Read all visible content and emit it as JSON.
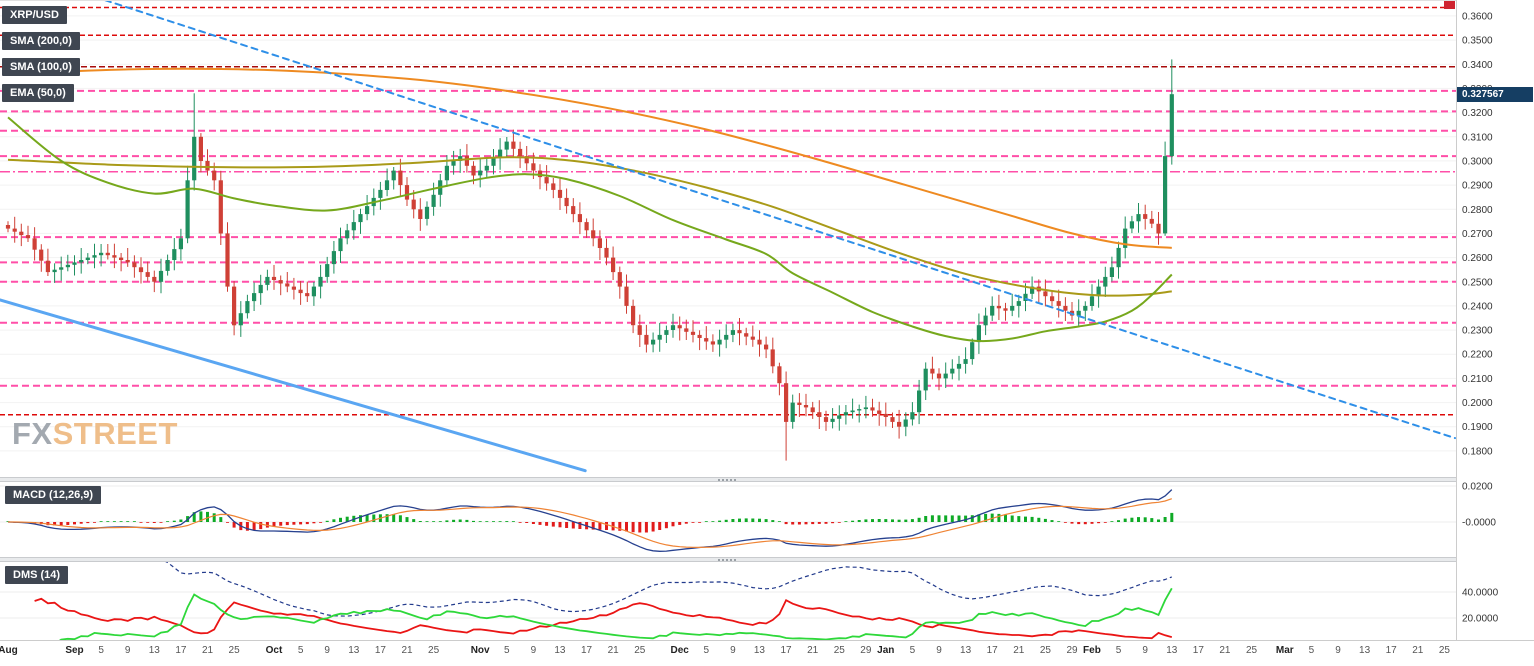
{
  "header": {
    "symbol": "XRP/USD"
  },
  "legend": {
    "sma200": "SMA (200,0)",
    "sma100": "SMA (100,0)",
    "ema50": "EMA (50,0)",
    "macd": "MACD (12,26,9)",
    "dms": "DMS (14)"
  },
  "price_badge": "0.327567",
  "watermark": {
    "fx": "FX",
    "street": "STREET"
  },
  "colors": {
    "up": "#1f8f5f",
    "down": "#cf4036",
    "badge_bg": "#3f4651",
    "price_badge_bg": "#153e63",
    "macd_line": "#27418f",
    "macd_signal": "#ef8435",
    "hist_pos": "#0faa26",
    "hist_neg": "#e11b1b",
    "di_plus": "#2ed83a",
    "di_minus": "#ea1515",
    "adx": "#223a8c"
  },
  "chart_data": {
    "type": "candlestick",
    "symbol": "XRP/USD",
    "last_price": 0.327567,
    "first_open": 0.2735,
    "closes": [
      0.272,
      0.2707,
      0.2693,
      0.268,
      0.2633,
      0.2587,
      0.254,
      0.255,
      0.256,
      0.257,
      0.258,
      0.259,
      0.26,
      0.261,
      0.262,
      0.261,
      0.26,
      0.259,
      0.258,
      0.256,
      0.254,
      0.252,
      0.25,
      0.2545,
      0.259,
      0.2635,
      0.268,
      0.292,
      0.31,
      0.3,
      0.296,
      0.292,
      0.27,
      0.248,
      0.232,
      0.237,
      0.242,
      0.2453,
      0.2487,
      0.252,
      0.2507,
      0.2493,
      0.248,
      0.2467,
      0.2453,
      0.244,
      0.248,
      0.252,
      0.2573,
      0.2627,
      0.268,
      0.2713,
      0.2747,
      0.278,
      0.2813,
      0.2847,
      0.288,
      0.292,
      0.296,
      0.29,
      0.284,
      0.28,
      0.276,
      0.281,
      0.286,
      0.292,
      0.298,
      0.3,
      0.302,
      0.298,
      0.294,
      0.296,
      0.298,
      0.3013,
      0.3047,
      0.308,
      0.305,
      0.302,
      0.299,
      0.296,
      0.2933,
      0.2907,
      0.288,
      0.2847,
      0.2813,
      0.278,
      0.2747,
      0.2713,
      0.268,
      0.264,
      0.26,
      0.254,
      0.248,
      0.24,
      0.232,
      0.228,
      0.224,
      0.226,
      0.228,
      0.23,
      0.232,
      0.2307,
      0.2293,
      0.228,
      0.2267,
      0.2253,
      0.224,
      0.226,
      0.228,
      0.23,
      0.2287,
      0.2273,
      0.226,
      0.224,
      0.222,
      0.215,
      0.208,
      0.192,
      0.2,
      0.199,
      0.198,
      0.196,
      0.194,
      0.192,
      0.1933,
      0.1947,
      0.196,
      0.1967,
      0.1973,
      0.198,
      0.1967,
      0.1953,
      0.194,
      0.192,
      0.19,
      0.193,
      0.196,
      0.205,
      0.214,
      0.212,
      0.21,
      0.212,
      0.214,
      0.216,
      0.218,
      0.225,
      0.232,
      0.236,
      0.24,
      0.239,
      0.238,
      0.24,
      0.242,
      0.245,
      0.248,
      0.246,
      0.244,
      0.242,
      0.24,
      0.238,
      0.236,
      0.238,
      0.24,
      0.244,
      0.248,
      0.252,
      0.256,
      0.264,
      0.272,
      0.275,
      0.278,
      0.276,
      0.274,
      0.27,
      0.302,
      0.3276
    ],
    "wick_overrides": {
      "27": {
        "high": 0.298
      },
      "28": {
        "high": 0.328
      },
      "117": {
        "low": 0.176
      },
      "174": {
        "high": 0.308,
        "low": 0.269
      },
      "175": {
        "high": 0.342,
        "low": 0.2985
      }
    },
    "y_axis_labels": [
      "0.3600",
      "0.3500",
      "0.3400",
      "0.3300",
      "0.3200",
      "0.3100",
      "0.3000",
      "0.2900",
      "0.2800",
      "0.2700",
      "0.2600",
      "0.2500",
      "0.2400",
      "0.2300",
      "0.2200",
      "0.2100",
      "0.2000",
      "0.1900",
      "0.1800"
    ],
    "x_axis_ticks": [
      {
        "label": "Aug",
        "day": 0,
        "month": true
      },
      {
        "label": "Sep",
        "day": 10,
        "month": true
      },
      {
        "label": "5",
        "day": 14,
        "month": false
      },
      {
        "label": "9",
        "day": 18,
        "month": false
      },
      {
        "label": "13",
        "day": 22,
        "month": false
      },
      {
        "label": "17",
        "day": 26,
        "month": false
      },
      {
        "label": "21",
        "day": 30,
        "month": false
      },
      {
        "label": "25",
        "day": 34,
        "month": false
      },
      {
        "label": "Oct",
        "day": 40,
        "month": true
      },
      {
        "label": "5",
        "day": 44,
        "month": false
      },
      {
        "label": "9",
        "day": 48,
        "month": false
      },
      {
        "label": "13",
        "day": 52,
        "month": false
      },
      {
        "label": "17",
        "day": 56,
        "month": false
      },
      {
        "label": "21",
        "day": 60,
        "month": false
      },
      {
        "label": "25",
        "day": 64,
        "month": false
      },
      {
        "label": "Nov",
        "day": 71,
        "month": true
      },
      {
        "label": "5",
        "day": 75,
        "month": false
      },
      {
        "label": "9",
        "day": 79,
        "month": false
      },
      {
        "label": "13",
        "day": 83,
        "month": false
      },
      {
        "label": "17",
        "day": 87,
        "month": false
      },
      {
        "label": "21",
        "day": 91,
        "month": false
      },
      {
        "label": "25",
        "day": 95,
        "month": false
      },
      {
        "label": "Dec",
        "day": 101,
        "month": true
      },
      {
        "label": "5",
        "day": 105,
        "month": false
      },
      {
        "label": "9",
        "day": 109,
        "month": false
      },
      {
        "label": "13",
        "day": 113,
        "month": false
      },
      {
        "label": "17",
        "day": 117,
        "month": false
      },
      {
        "label": "21",
        "day": 121,
        "month": false
      },
      {
        "label": "25",
        "day": 125,
        "month": false
      },
      {
        "label": "29",
        "day": 129,
        "month": false
      },
      {
        "label": "Jan",
        "day": 132,
        "month": true
      },
      {
        "label": "5",
        "day": 136,
        "month": false
      },
      {
        "label": "9",
        "day": 140,
        "month": false
      },
      {
        "label": "13",
        "day": 144,
        "month": false
      },
      {
        "label": "17",
        "day": 148,
        "month": false
      },
      {
        "label": "21",
        "day": 152,
        "month": false
      },
      {
        "label": "25",
        "day": 156,
        "month": false
      },
      {
        "label": "29",
        "day": 160,
        "month": false
      },
      {
        "label": "Feb",
        "day": 163,
        "month": true
      },
      {
        "label": "5",
        "day": 167,
        "month": false
      },
      {
        "label": "9",
        "day": 171,
        "month": false
      },
      {
        "label": "13",
        "day": 175,
        "month": false
      },
      {
        "label": "17",
        "day": 179,
        "month": false
      },
      {
        "label": "21",
        "day": 183,
        "month": false
      },
      {
        "label": "25",
        "day": 187,
        "month": false
      },
      {
        "label": "Mar",
        "day": 192,
        "month": true
      },
      {
        "label": "5",
        "day": 196,
        "month": false
      },
      {
        "label": "9",
        "day": 200,
        "month": false
      },
      {
        "label": "13",
        "day": 204,
        "month": false
      },
      {
        "label": "17",
        "day": 208,
        "month": false
      },
      {
        "label": "21",
        "day": 212,
        "month": false
      },
      {
        "label": "25",
        "day": 216,
        "month": false
      }
    ],
    "levels": [
      {
        "price": 0.3635,
        "color": "#dd0a0a",
        "dash": "5 3",
        "width": 1.5
      },
      {
        "price": 0.352,
        "color": "#dd0a0a",
        "dash": "5 3",
        "width": 1.5
      },
      {
        "price": 0.339,
        "color": "#a80b0b",
        "dash": "6 3",
        "width": 1.5
      },
      {
        "price": 0.329,
        "color": "#ff4fa8",
        "dash": "7 4",
        "width": 2
      },
      {
        "price": 0.3205,
        "color": "#ff4fa8",
        "dash": "7 4",
        "width": 2
      },
      {
        "price": 0.3125,
        "color": "#ff4fa8",
        "dash": "7 4",
        "width": 2
      },
      {
        "price": 0.302,
        "color": "#ff4fa8",
        "dash": "7 4",
        "width": 2
      },
      {
        "price": 0.2955,
        "color": "#ff4fa8",
        "dash": "10 3 2 3",
        "width": 1.5
      },
      {
        "price": 0.2685,
        "color": "#ff4fa8",
        "dash": "7 4",
        "width": 2
      },
      {
        "price": 0.258,
        "color": "#ff4fa8",
        "dash": "7 4",
        "width": 2
      },
      {
        "price": 0.25,
        "color": "#ff4fa8",
        "dash": "7 4",
        "width": 2
      },
      {
        "price": 0.233,
        "color": "#ff4fa8",
        "dash": "7 4",
        "width": 2
      },
      {
        "price": 0.207,
        "color": "#ff4fa8",
        "dash": "7 4",
        "width": 2
      },
      {
        "price": 0.195,
        "color": "#dd0a0a",
        "dash": "5 3",
        "width": 1.5
      }
    ],
    "trendlines": [
      {
        "key": "descending-trendline",
        "from_day": 14.6,
        "from_price": 0.3665,
        "to_day": 217.6,
        "to_price": 0.1853,
        "color": "#2e8fe8",
        "width": 2,
        "dash": "6 5"
      },
      {
        "key": "support-trendline",
        "from_day": -1.2,
        "from_price": 0.2425,
        "to_day": 86.8,
        "to_price": 0.1718,
        "color": "#5aa6f2",
        "width": 3,
        "dash": ""
      }
    ],
    "moving_averages": [
      {
        "key": "sma-200-line",
        "name": "SMA (200,0)",
        "color": "#ee8a21",
        "width": 2,
        "points": [
          [
            0,
            0.336
          ],
          [
            20,
            0.338
          ],
          [
            40,
            0.3375
          ],
          [
            60,
            0.334
          ],
          [
            75,
            0.329
          ],
          [
            90,
            0.322
          ],
          [
            105,
            0.313
          ],
          [
            120,
            0.302
          ],
          [
            135,
            0.29
          ],
          [
            150,
            0.278
          ],
          [
            160,
            0.27
          ],
          [
            168,
            0.2655
          ],
          [
            175,
            0.264
          ]
        ]
      },
      {
        "key": "sma-100-line",
        "name": "SMA (100,0)",
        "color": "#a99a18",
        "width": 2,
        "points": [
          [
            0,
            0.3005
          ],
          [
            15,
            0.2985
          ],
          [
            30,
            0.2975
          ],
          [
            45,
            0.2975
          ],
          [
            60,
            0.299
          ],
          [
            75,
            0.3015
          ],
          [
            85,
            0.3
          ],
          [
            95,
            0.2955
          ],
          [
            105,
            0.289
          ],
          [
            115,
            0.281
          ],
          [
            125,
            0.271
          ],
          [
            135,
            0.261
          ],
          [
            145,
            0.2525
          ],
          [
            155,
            0.247
          ],
          [
            163,
            0.2445
          ],
          [
            170,
            0.2445
          ],
          [
            175,
            0.246
          ]
        ]
      },
      {
        "key": "ema-50-line",
        "name": "EMA (50,0)",
        "color": "#76a81c",
        "width": 2,
        "points": [
          [
            0,
            0.318
          ],
          [
            8,
            0.3
          ],
          [
            15,
            0.291
          ],
          [
            22,
            0.2865
          ],
          [
            28,
            0.2885
          ],
          [
            34,
            0.2845
          ],
          [
            40,
            0.2815
          ],
          [
            48,
            0.2795
          ],
          [
            56,
            0.2835
          ],
          [
            64,
            0.2885
          ],
          [
            72,
            0.293
          ],
          [
            78,
            0.2945
          ],
          [
            84,
            0.2925
          ],
          [
            92,
            0.2855
          ],
          [
            100,
            0.2755
          ],
          [
            108,
            0.2675
          ],
          [
            114,
            0.2615
          ],
          [
            118,
            0.2535
          ],
          [
            124,
            0.2455
          ],
          [
            130,
            0.2375
          ],
          [
            136,
            0.2315
          ],
          [
            141,
            0.2275
          ],
          [
            146,
            0.2255
          ],
          [
            151,
            0.2265
          ],
          [
            156,
            0.2295
          ],
          [
            161,
            0.2315
          ],
          [
            165,
            0.2335
          ],
          [
            169,
            0.238
          ],
          [
            172,
            0.2445
          ],
          [
            175,
            0.253
          ]
        ]
      }
    ],
    "macd": {
      "label": "MACD (12,26,9)",
      "fast": 12,
      "slow": 26,
      "signal": 9,
      "axis_labels": [
        {
          "label": "0.0200",
          "value": 0.02
        },
        {
          "label": "-0.0000",
          "value": 0
        }
      ]
    },
    "dms": {
      "label": "DMS (14)",
      "period": 14,
      "axis_labels": [
        {
          "label": "40.0000",
          "value": 40
        },
        {
          "label": "20.0000",
          "value": 20
        }
      ]
    }
  }
}
